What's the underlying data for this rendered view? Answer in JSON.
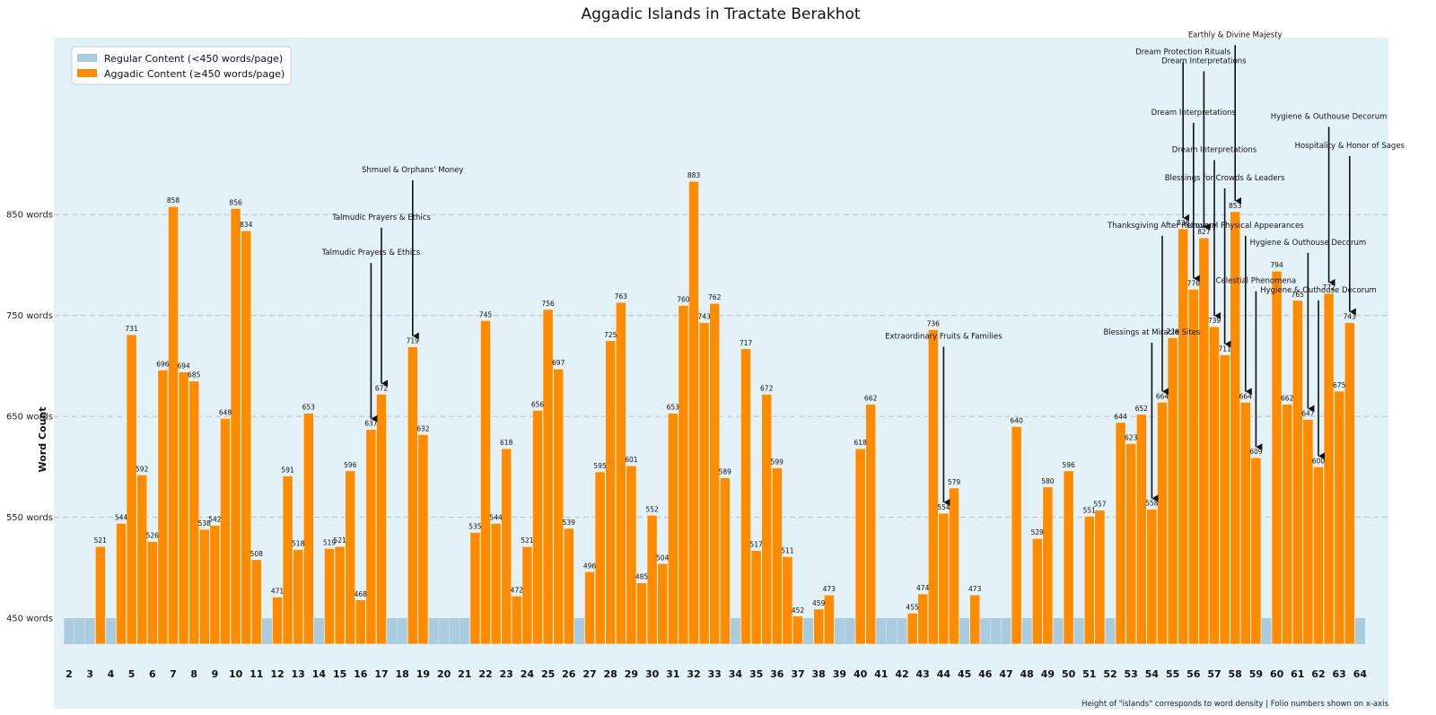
{
  "chart_data": {
    "type": "bar",
    "title": "Aggadic Islands in Tractate Berakhot",
    "xlabel": "",
    "ylabel": "Word Count",
    "yticks": [
      "450 words",
      "550 words",
      "650 words",
      "750 words",
      "850 words"
    ],
    "legend": [
      {
        "label": "Regular Content (<450 words/page)",
        "color": "#a9cce0"
      },
      {
        "label": "Aggadic Content (≥450 words/page)",
        "color": "#ff8c00"
      }
    ],
    "legend_position": "top-left",
    "grid": "horizontal-dashed",
    "footnote": "Height of \"islands\" corresponds to word density | Folio numbers shown on x-axis",
    "x_ticks": [
      "2",
      "3",
      "4",
      "5",
      "6",
      "7",
      "8",
      "9",
      "10",
      "11",
      "12",
      "13",
      "14",
      "15",
      "16",
      "17",
      "18",
      "19",
      "20",
      "21",
      "22",
      "23",
      "24",
      "25",
      "26",
      "27",
      "28",
      "29",
      "30",
      "31",
      "32",
      "33",
      "34",
      "35",
      "36",
      "37",
      "38",
      "39",
      "40",
      "41",
      "42",
      "43",
      "44",
      "45",
      "46",
      "47",
      "48",
      "49",
      "50",
      "51",
      "52",
      "53",
      "54",
      "55",
      "56",
      "57",
      "58",
      "59",
      "60",
      "61",
      "62",
      "63",
      "64"
    ],
    "bars": [
      {
        "p": 2.0,
        "v": null
      },
      {
        "p": 2.5,
        "v": null
      },
      {
        "p": 3.0,
        "v": null
      },
      {
        "p": 3.5,
        "v": 521
      },
      {
        "p": 4.0,
        "v": null
      },
      {
        "p": 4.5,
        "v": 544
      },
      {
        "p": 5.0,
        "v": 731
      },
      {
        "p": 5.5,
        "v": 592
      },
      {
        "p": 6.0,
        "v": 526
      },
      {
        "p": 6.5,
        "v": 696
      },
      {
        "p": 7.0,
        "v": 858
      },
      {
        "p": 7.5,
        "v": 694
      },
      {
        "p": 8.0,
        "v": 685
      },
      {
        "p": 8.5,
        "v": 538
      },
      {
        "p": 9.0,
        "v": 542
      },
      {
        "p": 9.5,
        "v": 648
      },
      {
        "p": 10.0,
        "v": 856
      },
      {
        "p": 10.5,
        "v": 834
      },
      {
        "p": 11.0,
        "v": 508
      },
      {
        "p": 11.5,
        "v": null
      },
      {
        "p": 12.0,
        "v": 471
      },
      {
        "p": 12.5,
        "v": 591
      },
      {
        "p": 13.0,
        "v": 518
      },
      {
        "p": 13.5,
        "v": 653
      },
      {
        "p": 14.0,
        "v": null
      },
      {
        "p": 14.5,
        "v": 519
      },
      {
        "p": 15.0,
        "v": 521
      },
      {
        "p": 15.5,
        "v": 596
      },
      {
        "p": 16.0,
        "v": 468
      },
      {
        "p": 16.5,
        "v": 637
      },
      {
        "p": 17.0,
        "v": 672
      },
      {
        "p": 17.5,
        "v": null
      },
      {
        "p": 18.0,
        "v": null
      },
      {
        "p": 18.5,
        "v": 719
      },
      {
        "p": 19.0,
        "v": 632
      },
      {
        "p": 19.5,
        "v": null
      },
      {
        "p": 20.0,
        "v": null
      },
      {
        "p": 20.5,
        "v": null
      },
      {
        "p": 21.0,
        "v": null
      },
      {
        "p": 21.5,
        "v": 535
      },
      {
        "p": 22.0,
        "v": 745
      },
      {
        "p": 22.5,
        "v": 544
      },
      {
        "p": 23.0,
        "v": 618
      },
      {
        "p": 23.5,
        "v": 472
      },
      {
        "p": 24.0,
        "v": 521
      },
      {
        "p": 24.5,
        "v": 656
      },
      {
        "p": 25.0,
        "v": 756
      },
      {
        "p": 25.5,
        "v": 697
      },
      {
        "p": 26.0,
        "v": 539
      },
      {
        "p": 26.5,
        "v": null
      },
      {
        "p": 27.0,
        "v": 496
      },
      {
        "p": 27.5,
        "v": 595
      },
      {
        "p": 28.0,
        "v": 725
      },
      {
        "p": 28.5,
        "v": 763
      },
      {
        "p": 29.0,
        "v": 601
      },
      {
        "p": 29.5,
        "v": 485
      },
      {
        "p": 30.0,
        "v": 552
      },
      {
        "p": 30.5,
        "v": 504
      },
      {
        "p": 31.0,
        "v": 653
      },
      {
        "p": 31.5,
        "v": 760
      },
      {
        "p": 32.0,
        "v": 883
      },
      {
        "p": 32.5,
        "v": 743
      },
      {
        "p": 33.0,
        "v": 762
      },
      {
        "p": 33.5,
        "v": 589
      },
      {
        "p": 34.0,
        "v": null
      },
      {
        "p": 34.5,
        "v": 717
      },
      {
        "p": 35.0,
        "v": 517
      },
      {
        "p": 35.5,
        "v": 672
      },
      {
        "p": 36.0,
        "v": 599
      },
      {
        "p": 36.5,
        "v": 511
      },
      {
        "p": 37.0,
        "v": 452
      },
      {
        "p": 37.5,
        "v": null
      },
      {
        "p": 38.0,
        "v": 459
      },
      {
        "p": 38.5,
        "v": 473
      },
      {
        "p": 39.0,
        "v": null
      },
      {
        "p": 39.5,
        "v": null
      },
      {
        "p": 40.0,
        "v": 618
      },
      {
        "p": 40.5,
        "v": 662
      },
      {
        "p": 41.0,
        "v": null
      },
      {
        "p": 41.5,
        "v": null
      },
      {
        "p": 42.0,
        "v": null
      },
      {
        "p": 42.5,
        "v": 455
      },
      {
        "p": 43.0,
        "v": 474
      },
      {
        "p": 43.5,
        "v": 736
      },
      {
        "p": 44.0,
        "v": 554
      },
      {
        "p": 44.5,
        "v": 579
      },
      {
        "p": 45.0,
        "v": null
      },
      {
        "p": 45.5,
        "v": 473
      },
      {
        "p": 46.0,
        "v": null
      },
      {
        "p": 46.5,
        "v": null
      },
      {
        "p": 47.0,
        "v": null
      },
      {
        "p": 47.5,
        "v": 640
      },
      {
        "p": 48.0,
        "v": null
      },
      {
        "p": 48.5,
        "v": 529
      },
      {
        "p": 49.0,
        "v": 580
      },
      {
        "p": 49.5,
        "v": null
      },
      {
        "p": 50.0,
        "v": 596
      },
      {
        "p": 50.5,
        "v": null
      },
      {
        "p": 51.0,
        "v": 551
      },
      {
        "p": 51.5,
        "v": 557
      },
      {
        "p": 52.0,
        "v": null
      },
      {
        "p": 52.5,
        "v": 644
      },
      {
        "p": 53.0,
        "v": 623
      },
      {
        "p": 53.5,
        "v": 652
      },
      {
        "p": 54.0,
        "v": 558
      },
      {
        "p": 54.5,
        "v": 664
      },
      {
        "p": 55.0,
        "v": 728
      },
      {
        "p": 55.5,
        "v": 836
      },
      {
        "p": 56.0,
        "v": 776
      },
      {
        "p": 56.5,
        "v": 827
      },
      {
        "p": 57.0,
        "v": 739
      },
      {
        "p": 57.5,
        "v": 711
      },
      {
        "p": 58.0,
        "v": 853
      },
      {
        "p": 58.5,
        "v": 664
      },
      {
        "p": 59.0,
        "v": 609
      },
      {
        "p": 59.5,
        "v": null
      },
      {
        "p": 60.0,
        "v": 794
      },
      {
        "p": 60.5,
        "v": 662
      },
      {
        "p": 61.0,
        "v": 765
      },
      {
        "p": 61.5,
        "v": 647
      },
      {
        "p": 62.0,
        "v": 600
      },
      {
        "p": 62.5,
        "v": 772
      },
      {
        "p": 63.0,
        "v": 675
      },
      {
        "p": 63.5,
        "v": 743
      },
      {
        "p": 64.0,
        "v": null
      }
    ],
    "annotations": [
      {
        "text": "Talmudic Prayers & Ethics",
        "p": 16.5,
        "v": 637,
        "text_v": 810
      },
      {
        "text": "Talmudic Prayers & Ethics",
        "p": 17.0,
        "v": 672,
        "text_v": 845
      },
      {
        "text": "Shmuel & Orphans' Money",
        "p": 18.5,
        "v": 719,
        "text_v": 892
      },
      {
        "text": "Extraordinary Fruits & Families",
        "p": 44.0,
        "v": 554,
        "text_v": 727
      },
      {
        "text": "Blessings at Miracle Sites",
        "p": 54.0,
        "v": 558,
        "text_v": 731
      },
      {
        "text": "Thanksgiving After Recovery",
        "p": 54.5,
        "v": 664,
        "text_v": 837
      },
      {
        "text": "Dream Protection Rituals",
        "p": 55.5,
        "v": 836,
        "text_v": 1009
      },
      {
        "text": "Dream Interpretations",
        "p": 56.0,
        "v": 776,
        "text_v": 949
      },
      {
        "text": "Dream Interpretations",
        "p": 56.5,
        "v": 827,
        "text_v": 1000
      },
      {
        "text": "Dream Interpretations",
        "p": 57.0,
        "v": 739,
        "text_v": 912
      },
      {
        "text": "Blessings for Crowds & Leaders",
        "p": 57.5,
        "v": 711,
        "text_v": 884
      },
      {
        "text": "Earthly & Divine Majesty",
        "p": 58.0,
        "v": 853,
        "text_v": 1026
      },
      {
        "text": "Unusual Physical Appearances",
        "p": 58.5,
        "v": 664,
        "text_v": 837
      },
      {
        "text": "Celestial Phenomena",
        "p": 59.0,
        "v": 609,
        "text_v": 782
      },
      {
        "text": "Hygiene & Outhouse Decorum",
        "p": 61.5,
        "v": 647,
        "text_v": 820
      },
      {
        "text": "Hygiene & Outhouse Decorum",
        "p": 62.0,
        "v": 600,
        "text_v": 773
      },
      {
        "text": "Hygiene & Outhouse Decorum",
        "p": 62.5,
        "v": 772,
        "text_v": 945
      },
      {
        "text": "Hospitality & Honor of Sages",
        "p": 63.5,
        "v": 743,
        "text_v": 916
      }
    ]
  }
}
